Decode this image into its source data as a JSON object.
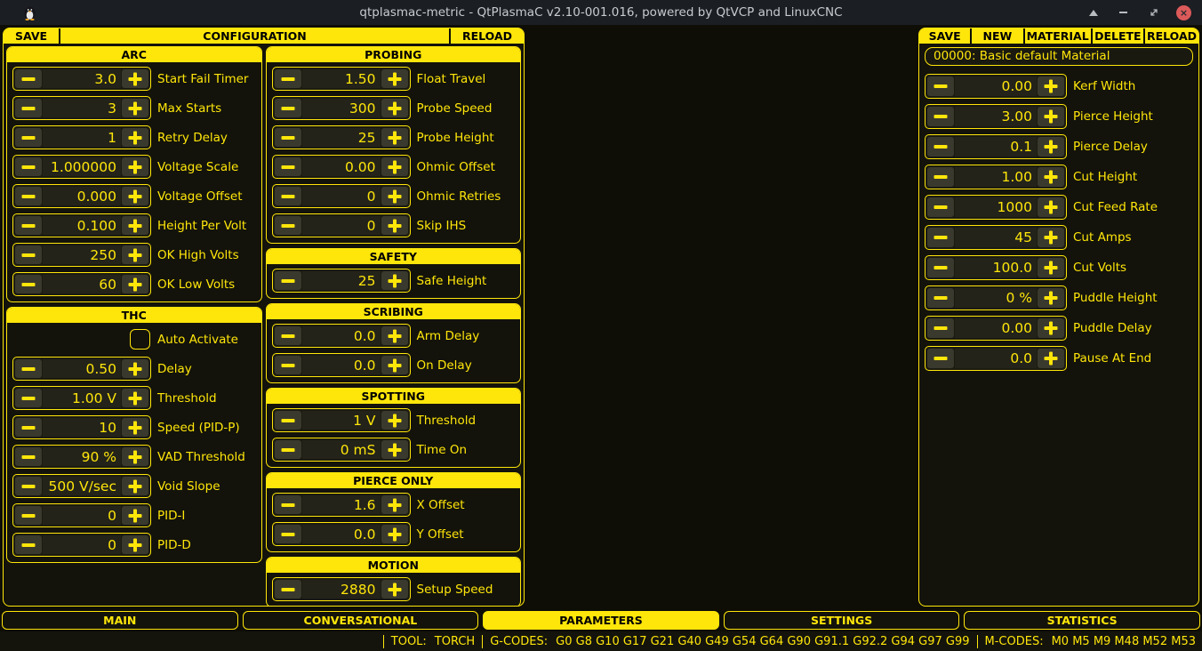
{
  "title_bar": {
    "title": "qtplasmac-metric - QtPlasmaC v2.10-001.016, powered by QtVCP and LinuxCNC",
    "close_glyph": "×"
  },
  "colors": {
    "accent": "#ffe60a",
    "background": "#0e0e07",
    "close_red": "#dc5a5a"
  },
  "config_panel": {
    "save_label": "SAVE",
    "title": "CONFIGURATION",
    "reload_label": "RELOAD",
    "columns": [
      {
        "sections": [
          {
            "title": "ARC",
            "rows": [
              {
                "type": "spin",
                "value": "3.0",
                "label": "Start Fail Timer"
              },
              {
                "type": "spin",
                "value": "3",
                "label": "Max Starts"
              },
              {
                "type": "spin",
                "value": "1",
                "label": "Retry Delay"
              },
              {
                "type": "spin",
                "value": "1.000000",
                "label": "Voltage Scale"
              },
              {
                "type": "spin",
                "value": "0.000",
                "label": "Voltage Offset"
              },
              {
                "type": "spin",
                "value": "0.100",
                "label": "Height Per Volt"
              },
              {
                "type": "spin",
                "value": "250",
                "label": "OK High Volts"
              },
              {
                "type": "spin",
                "value": "60",
                "label": "OK Low Volts"
              }
            ]
          },
          {
            "title": "THC",
            "rows": [
              {
                "type": "checkbox",
                "checked": false,
                "label": "Auto Activate"
              },
              {
                "type": "spin",
                "value": "0.50",
                "label": "Delay"
              },
              {
                "type": "spin",
                "value": "1.00 V",
                "label": "Threshold"
              },
              {
                "type": "spin",
                "value": "10",
                "label": "Speed (PID-P)"
              },
              {
                "type": "spin",
                "value": "90 %",
                "label": "VAD Threshold"
              },
              {
                "type": "spin",
                "value": "500 V/sec",
                "label": "Void Slope"
              },
              {
                "type": "spin",
                "value": "0",
                "label": "PID-I"
              },
              {
                "type": "spin",
                "value": "0",
                "label": "PID-D"
              }
            ]
          }
        ]
      },
      {
        "sections": [
          {
            "title": "PROBING",
            "rows": [
              {
                "type": "spin",
                "value": "1.50",
                "label": "Float Travel"
              },
              {
                "type": "spin",
                "value": "300",
                "label": "Probe Speed"
              },
              {
                "type": "spin",
                "value": "25",
                "label": "Probe Height"
              },
              {
                "type": "spin",
                "value": "0.00",
                "label": "Ohmic Offset"
              },
              {
                "type": "spin",
                "value": "0",
                "label": "Ohmic Retries"
              },
              {
                "type": "spin",
                "value": "0",
                "label": "Skip IHS"
              }
            ]
          },
          {
            "title": "SAFETY",
            "rows": [
              {
                "type": "spin",
                "value": "25",
                "label": "Safe Height"
              }
            ]
          },
          {
            "title": "SCRIBING",
            "rows": [
              {
                "type": "spin",
                "value": "0.0",
                "label": "Arm Delay"
              },
              {
                "type": "spin",
                "value": "0.0",
                "label": "On Delay"
              }
            ]
          },
          {
            "title": "SPOTTING",
            "rows": [
              {
                "type": "spin",
                "value": "1 V",
                "label": "Threshold"
              },
              {
                "type": "spin",
                "value": "0 mS",
                "label": "Time On"
              }
            ]
          },
          {
            "title": "PIERCE ONLY",
            "rows": [
              {
                "type": "spin",
                "value": "1.6",
                "label": "X Offset"
              },
              {
                "type": "spin",
                "value": "0.0",
                "label": "Y Offset"
              }
            ]
          },
          {
            "title": "MOTION",
            "rows": [
              {
                "type": "spin",
                "value": "2880",
                "label": "Setup Speed"
              }
            ]
          }
        ]
      }
    ]
  },
  "materials_panel": {
    "buttons": [
      "SAVE",
      "NEW",
      "MATERIAL",
      "DELETE",
      "RELOAD"
    ],
    "material_selector": "00000: Basic default Material",
    "rows": [
      {
        "type": "spin",
        "value": "0.00",
        "label": "Kerf Width"
      },
      {
        "type": "spin",
        "value": "3.00",
        "label": "Pierce Height"
      },
      {
        "type": "spin",
        "value": "0.1",
        "label": "Pierce Delay"
      },
      {
        "type": "spin",
        "value": "1.00",
        "label": "Cut Height"
      },
      {
        "type": "spin",
        "value": "1000",
        "label": "Cut Feed Rate"
      },
      {
        "type": "spin",
        "value": "45",
        "label": "Cut Amps"
      },
      {
        "type": "spin",
        "value": "100.0",
        "label": "Cut Volts"
      },
      {
        "type": "spin",
        "value": "0 %",
        "label": "Puddle Height"
      },
      {
        "type": "spin",
        "value": "0.00",
        "label": "Puddle Delay"
      },
      {
        "type": "spin",
        "value": "0.0",
        "label": "Pause At End"
      }
    ]
  },
  "tabs": [
    {
      "label": "MAIN",
      "active": false
    },
    {
      "label": "CONVERSATIONAL",
      "active": false
    },
    {
      "label": "PARAMETERS",
      "active": true
    },
    {
      "label": "SETTINGS",
      "active": false
    },
    {
      "label": "STATISTICS",
      "active": false
    }
  ],
  "status_bar": {
    "tool_label": "TOOL:",
    "tool_value": "TORCH",
    "gcodes_label": "G-CODES:",
    "gcodes_value": "G0 G8 G10 G17 G21 G40 G49 G54 G64 G90 G91.1 G92.2 G94 G97 G99",
    "mcodes_label": "M-CODES:",
    "mcodes_value": "M0 M5 M9 M48 M52 M53"
  }
}
